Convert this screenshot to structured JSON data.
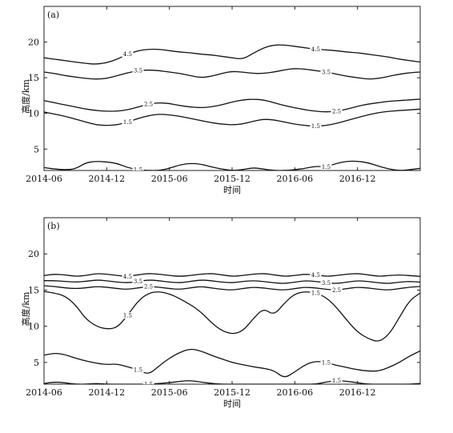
{
  "chart_data": [
    {
      "type": "line",
      "panel_label": "(a)",
      "xlabel": "时间",
      "ylabel": "高度/km",
      "x_ticks": [
        "2014-06",
        "2014-12",
        "2015-06",
        "2015-12",
        "2016-06",
        "2016-12"
      ],
      "y_ticks": [
        5,
        10,
        15,
        20
      ],
      "xlim": [
        "2014-06",
        "2017-06"
      ],
      "ylim": [
        2,
        25
      ],
      "grid": false,
      "contour_levels": [
        1.5,
        2.5,
        3.5,
        4.5
      ],
      "series": [
        {
          "level": 4.5,
          "label_text": "4.5",
          "x": [
            0,
            1,
            2,
            3,
            4,
            5,
            6,
            7,
            8,
            9,
            10,
            11,
            12,
            13,
            14,
            15,
            16,
            17,
            18,
            19,
            20,
            21,
            22,
            23,
            24,
            25,
            26,
            27,
            28,
            29,
            30,
            31,
            32,
            33,
            34,
            35,
            36
          ],
          "y": [
            17.8,
            17.6,
            17.4,
            17.2,
            17.0,
            16.9,
            17.1,
            17.6,
            18.3,
            18.8,
            19.0,
            19.0,
            18.8,
            18.6,
            18.5,
            18.3,
            18.2,
            18.0,
            17.8,
            17.6,
            18.4,
            19.2,
            19.6,
            19.6,
            19.4,
            19.2,
            19.0,
            18.9,
            18.8,
            18.6,
            18.5,
            18.3,
            18.1,
            17.9,
            17.6,
            17.4,
            17.2
          ]
        },
        {
          "level": 3.5,
          "label_text": "3.5",
          "x": [
            0,
            1,
            2,
            3,
            4,
            5,
            6,
            7,
            8,
            9,
            10,
            11,
            12,
            13,
            14,
            15,
            16,
            17,
            18,
            19,
            20,
            21,
            22,
            23,
            24,
            25,
            26,
            27,
            28,
            29,
            30,
            31,
            32,
            33,
            34,
            35,
            36
          ],
          "y": [
            15.8,
            15.6,
            15.3,
            15.1,
            14.9,
            14.8,
            14.9,
            15.3,
            15.7,
            16.0,
            16.1,
            16.0,
            15.8,
            15.6,
            15.3,
            15.0,
            15.2,
            15.6,
            15.9,
            15.8,
            15.6,
            15.6,
            15.8,
            16.1,
            16.3,
            16.2,
            16.0,
            15.8,
            15.5,
            15.2,
            15.0,
            14.8,
            14.9,
            15.2,
            15.5,
            15.7,
            15.8
          ]
        },
        {
          "level": 2.5,
          "label_text": "2.5",
          "x": [
            0,
            1,
            2,
            3,
            4,
            5,
            6,
            7,
            8,
            9,
            10,
            11,
            12,
            13,
            14,
            15,
            16,
            17,
            18,
            19,
            20,
            21,
            22,
            23,
            24,
            25,
            26,
            27,
            28,
            29,
            30,
            31,
            32,
            33,
            34,
            35,
            36
          ],
          "y": [
            11.8,
            11.5,
            11.2,
            10.9,
            10.6,
            10.4,
            10.3,
            10.3,
            10.5,
            10.9,
            11.3,
            11.5,
            11.4,
            11.1,
            10.9,
            10.8,
            10.9,
            11.2,
            11.6,
            11.9,
            12.0,
            11.9,
            11.5,
            11.1,
            10.8,
            10.5,
            10.3,
            10.2,
            10.3,
            10.6,
            11.0,
            11.3,
            11.5,
            11.7,
            11.8,
            11.9,
            12.0
          ]
        },
        {
          "level": 1.5,
          "label_text": "1.5",
          "x": [
            0,
            1,
            2,
            3,
            4,
            5,
            6,
            7,
            8,
            9,
            10,
            11,
            12,
            13,
            14,
            15,
            16,
            17,
            18,
            19,
            20,
            21,
            22,
            23,
            24,
            25,
            26,
            27,
            28,
            29,
            30,
            31,
            32,
            33,
            34,
            35,
            36
          ],
          "y": [
            10.2,
            9.9,
            9.6,
            9.2,
            8.8,
            8.4,
            8.3,
            8.4,
            8.8,
            9.3,
            9.7,
            9.9,
            9.8,
            9.6,
            9.3,
            9.0,
            8.7,
            8.5,
            8.4,
            8.5,
            8.9,
            9.2,
            9.1,
            8.8,
            8.5,
            8.3,
            8.2,
            8.3,
            8.6,
            9.0,
            9.4,
            9.8,
            10.1,
            10.3,
            10.4,
            10.5,
            10.6
          ]
        },
        {
          "level": 1.5,
          "label_text": "1.5",
          "x": [
            0,
            1,
            2,
            3,
            4,
            5,
            6,
            7,
            8,
            9,
            10,
            11,
            12,
            13,
            14,
            15,
            16,
            17,
            18,
            19,
            20,
            21,
            22,
            23,
            24,
            25,
            26,
            27,
            28,
            29,
            30,
            31,
            32,
            33,
            34,
            35,
            36
          ],
          "y": [
            2.4,
            2.2,
            2.1,
            2.2,
            3.1,
            3.3,
            3.2,
            3.0,
            2.4,
            2.1,
            2.0,
            2.0,
            2.3,
            2.8,
            3.0,
            2.9,
            2.5,
            2.2,
            2.0,
            2.1,
            2.4,
            2.2,
            2.0,
            2.0,
            2.1,
            2.3,
            2.6,
            2.5,
            3.0,
            3.3,
            3.3,
            3.1,
            2.6,
            2.2,
            2.0,
            2.1,
            2.3
          ]
        }
      ]
    },
    {
      "type": "line",
      "panel_label": "(b)",
      "xlabel": "时间",
      "ylabel": "高度/km",
      "x_ticks": [
        "2014-06",
        "2014-12",
        "2015-06",
        "2015-12",
        "2016-06",
        "2016-12"
      ],
      "y_ticks": [
        5,
        10,
        15,
        20
      ],
      "xlim": [
        "2014-06",
        "2017-06"
      ],
      "ylim": [
        2,
        25
      ],
      "grid": false,
      "contour_levels": [
        1.5,
        2.5,
        3.5,
        4.5
      ],
      "series": [
        {
          "level": 4.5,
          "label_text": "4.5",
          "x": [
            0,
            1,
            2,
            3,
            4,
            5,
            6,
            7,
            8,
            9,
            10,
            11,
            12,
            13,
            14,
            15,
            16,
            17,
            18,
            19,
            20,
            21,
            22,
            23,
            24,
            25,
            26,
            27,
            28,
            29,
            30,
            31,
            32,
            33,
            34,
            35,
            36
          ],
          "y": [
            17.0,
            17.2,
            17.1,
            16.9,
            17.0,
            17.3,
            17.2,
            17.0,
            16.9,
            17.1,
            17.3,
            17.2,
            17.0,
            16.9,
            17.0,
            17.2,
            17.3,
            17.1,
            16.9,
            17.0,
            17.2,
            17.3,
            17.1,
            16.9,
            17.0,
            17.2,
            17.1,
            16.9,
            17.0,
            17.2,
            17.3,
            17.1,
            16.9,
            17.0,
            17.1,
            17.0,
            16.9
          ]
        },
        {
          "level": 3.5,
          "label_text": "3.5",
          "x": [
            0,
            1,
            2,
            3,
            4,
            5,
            6,
            7,
            8,
            9,
            10,
            11,
            12,
            13,
            14,
            15,
            16,
            17,
            18,
            19,
            20,
            21,
            22,
            23,
            24,
            25,
            26,
            27,
            28,
            29,
            30,
            31,
            32,
            33,
            34,
            35,
            36
          ],
          "y": [
            16.3,
            16.3,
            16.2,
            16.1,
            16.2,
            16.4,
            16.3,
            16.1,
            16.0,
            16.2,
            16.4,
            16.3,
            16.1,
            16.0,
            16.2,
            16.4,
            16.3,
            16.1,
            16.0,
            16.2,
            16.3,
            16.2,
            16.0,
            15.9,
            16.1,
            16.3,
            16.2,
            16.0,
            15.9,
            16.1,
            16.3,
            16.2,
            16.0,
            15.9,
            16.1,
            16.2,
            16.1
          ]
        },
        {
          "level": 2.5,
          "label_text": "2.5",
          "x": [
            0,
            1,
            2,
            3,
            4,
            5,
            6,
            7,
            8,
            9,
            10,
            11,
            12,
            13,
            14,
            15,
            16,
            17,
            18,
            19,
            20,
            21,
            22,
            23,
            24,
            25,
            26,
            27,
            28,
            29,
            30,
            31,
            32,
            33,
            34,
            35,
            36
          ],
          "y": [
            15.6,
            15.5,
            15.3,
            15.2,
            15.3,
            15.5,
            15.4,
            15.2,
            15.1,
            15.3,
            15.5,
            15.4,
            15.2,
            15.1,
            15.3,
            15.5,
            15.3,
            15.1,
            15.0,
            15.2,
            15.4,
            15.3,
            15.1,
            15.0,
            15.2,
            15.4,
            15.3,
            15.1,
            15.0,
            15.2,
            15.4,
            15.3,
            15.1,
            15.0,
            15.2,
            15.4,
            15.5
          ]
        },
        {
          "level": 1.5,
          "label_text": "1.5",
          "x": [
            0,
            1,
            2,
            3,
            4,
            5,
            6,
            7,
            8,
            9,
            10,
            11,
            12,
            13,
            14,
            15,
            16,
            17,
            18,
            19,
            20,
            21,
            22,
            23,
            24,
            25,
            26,
            27,
            28,
            29,
            30,
            31,
            32,
            33,
            34,
            35,
            36
          ],
          "y": [
            14.8,
            14.6,
            14.2,
            13.0,
            11.0,
            10.0,
            9.6,
            9.8,
            11.5,
            13.5,
            14.6,
            14.8,
            14.5,
            13.8,
            13.0,
            12.0,
            10.5,
            9.4,
            8.9,
            9.3,
            11.0,
            12.5,
            11.5,
            13.2,
            14.5,
            14.8,
            14.6,
            14.0,
            12.6,
            10.8,
            9.2,
            8.3,
            7.8,
            8.8,
            11.2,
            13.6,
            14.6
          ]
        },
        {
          "level": 1.5,
          "label_text": "1.5",
          "x": [
            0,
            1,
            2,
            3,
            4,
            5,
            6,
            7,
            8,
            9,
            10,
            11,
            12,
            13,
            14,
            15,
            16,
            17,
            18,
            19,
            20,
            21,
            22,
            23,
            24,
            25,
            26,
            27,
            28,
            29,
            30,
            31,
            32,
            33,
            34,
            35,
            36
          ],
          "y": [
            6.0,
            6.3,
            6.1,
            5.6,
            5.2,
            4.9,
            4.7,
            4.8,
            4.4,
            4.0,
            3.3,
            4.5,
            5.6,
            6.4,
            6.9,
            6.6,
            6.0,
            5.5,
            5.0,
            4.7,
            4.4,
            4.2,
            3.9,
            2.8,
            3.7,
            4.7,
            5.2,
            5.0,
            4.6,
            4.3,
            4.0,
            3.8,
            3.8,
            4.3,
            5.0,
            5.9,
            6.6
          ]
        },
        {
          "level": 1.5,
          "label_text": "1.5",
          "x": [
            0,
            1,
            2,
            3,
            4,
            5,
            6,
            7,
            8,
            9,
            10,
            11,
            12,
            13,
            14,
            15,
            16,
            17,
            18,
            19,
            20,
            21,
            22,
            23,
            24,
            25,
            26,
            27,
            28,
            29,
            30,
            31,
            32,
            33,
            34,
            35,
            36
          ],
          "y": [
            2.1,
            2.3,
            2.2,
            2.0,
            2.0,
            2.1,
            2.0,
            2.0,
            2.0,
            2.0,
            2.0,
            2.1,
            2.2,
            2.4,
            2.5,
            2.3,
            2.1,
            2.0,
            2.0,
            2.0,
            2.0,
            2.0,
            2.0,
            2.0,
            2.0,
            2.0,
            2.0,
            2.3,
            2.5,
            2.4,
            2.2,
            2.0,
            2.0,
            2.0,
            2.0,
            2.0,
            2.1
          ]
        }
      ]
    }
  ]
}
